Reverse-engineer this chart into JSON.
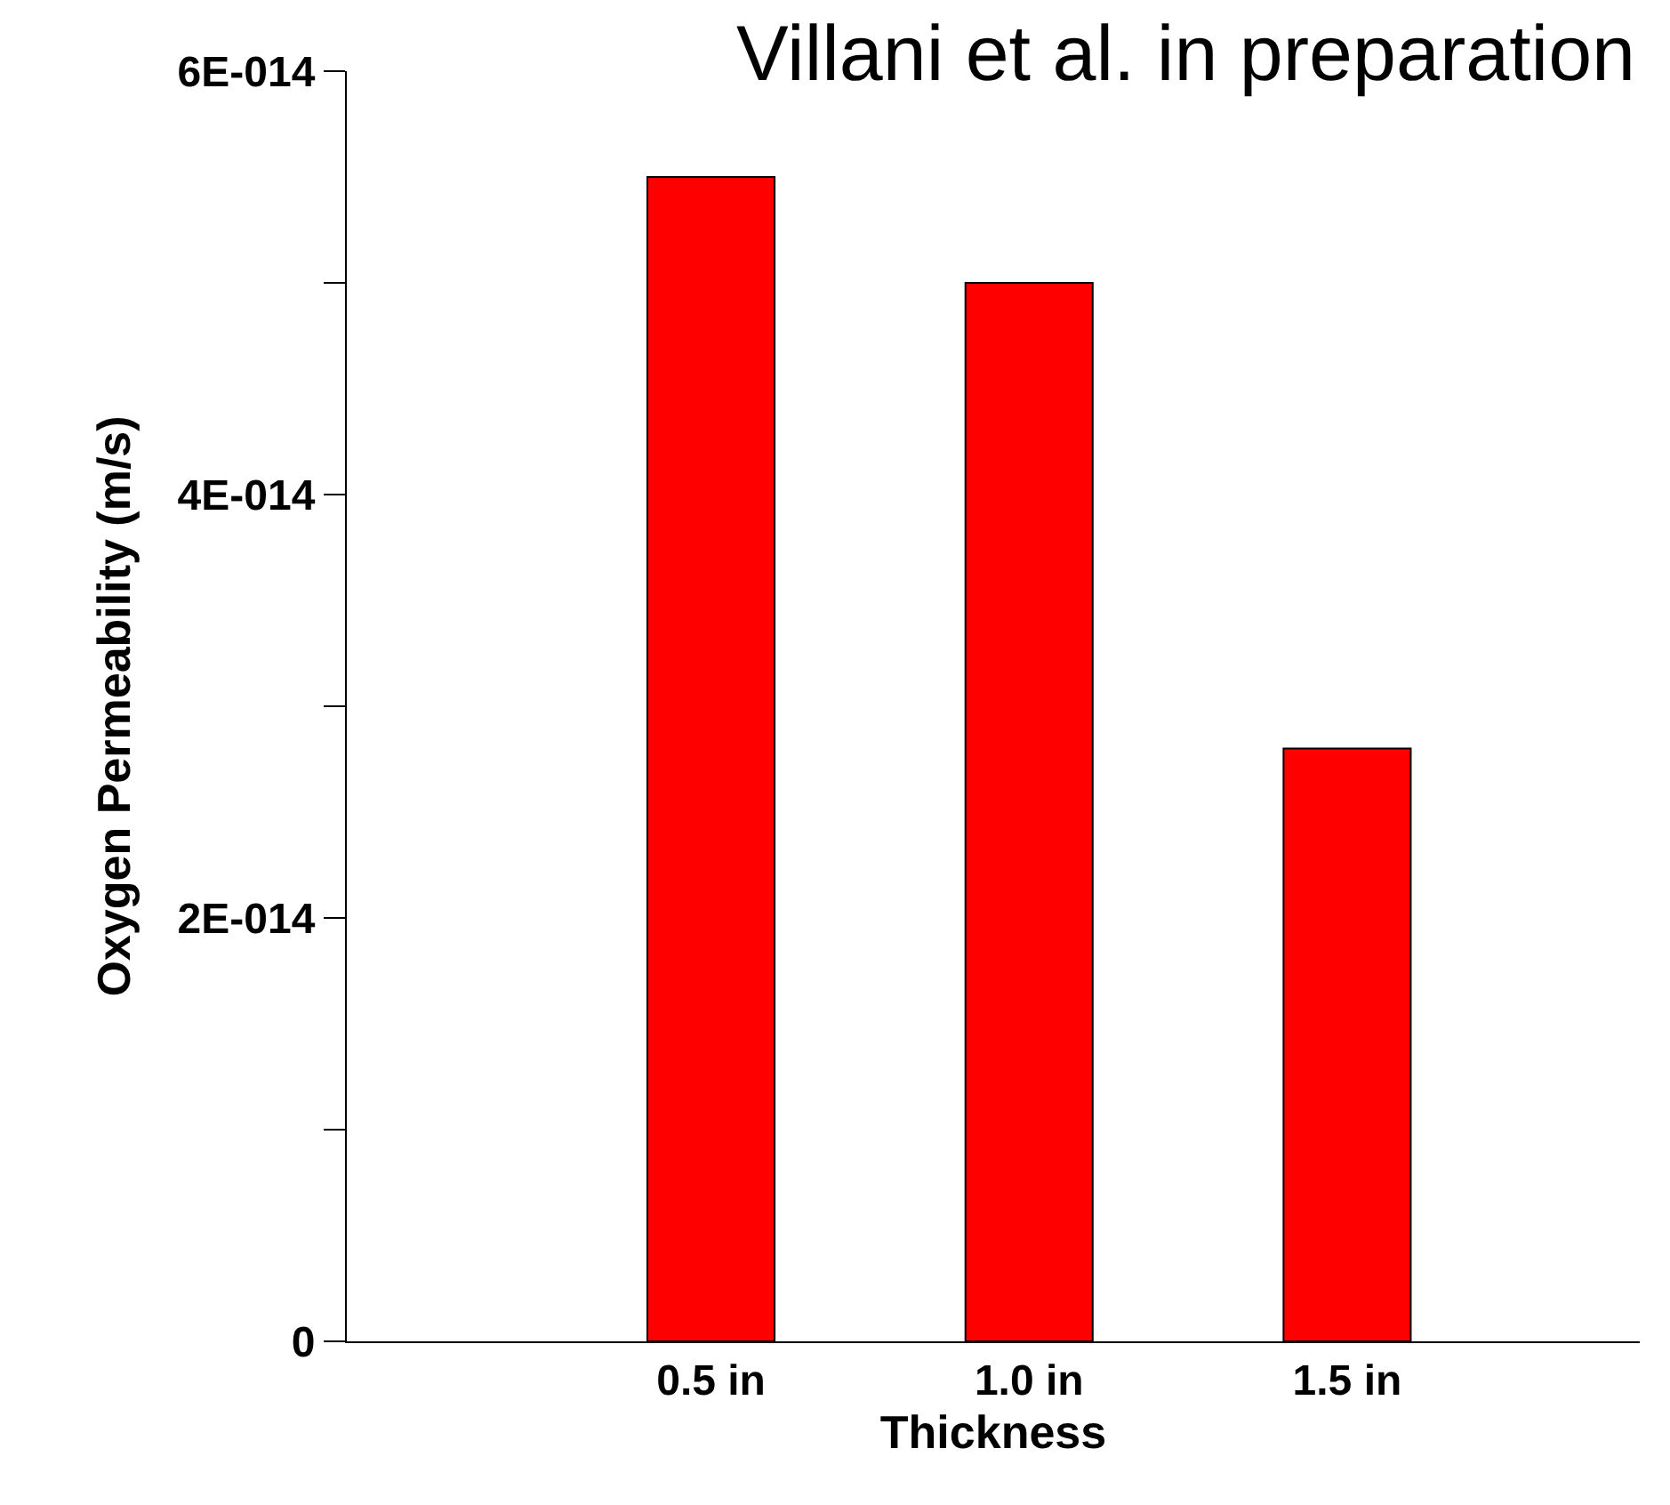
{
  "chart_data": {
    "type": "bar",
    "categories": [
      "0.5 in",
      "1.0 in",
      "1.5 in"
    ],
    "values": [
      5.5e-14,
      5e-14,
      2.8e-14
    ],
    "color": "#ff0000",
    "xlabel": "Thickness",
    "ylabel": "Oxygen Permeability (m/s)",
    "ylim": [
      0,
      6e-14
    ],
    "yticks": [
      {
        "value": 0,
        "label": "0"
      },
      {
        "value": 1e-14,
        "label": null
      },
      {
        "value": 2e-14,
        "label": "2E-014"
      },
      {
        "value": 3e-14,
        "label": null
      },
      {
        "value": 4e-14,
        "label": "4E-014"
      },
      {
        "value": 5e-14,
        "label": null
      },
      {
        "value": 6e-14,
        "label": "6E-014"
      }
    ],
    "annotations": [
      "Villani et al. in preparation"
    ],
    "grid": false
  }
}
